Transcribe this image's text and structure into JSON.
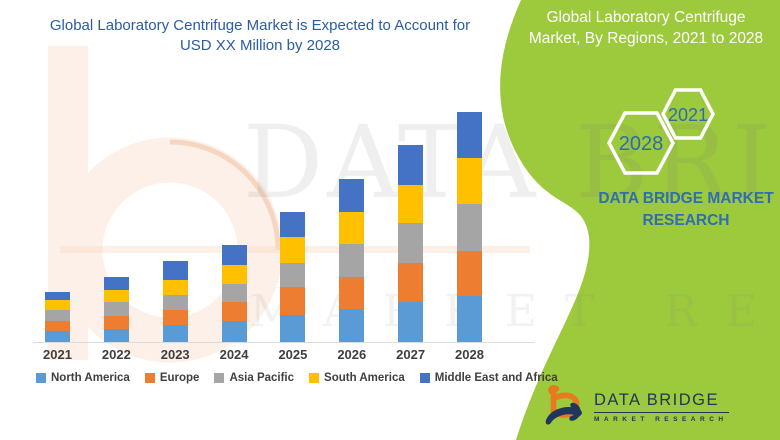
{
  "colors": {
    "green": "#9dc93d",
    "chart_title_blue": "#2a5ca8",
    "brand_blue": "#2e6fae",
    "hex_year_blue": "#2e6da8",
    "logo_navy": "#20365c",
    "logo_orange": "#e8791e",
    "axis_label_gray": "#3f3f3f",
    "watermark_peach": "#fdf0e8"
  },
  "left_panel": {
    "title_line1": "Global Laboratory Centrifuge Market is Expected to Account for",
    "title_line2": "USD XX Million by 2028"
  },
  "right_panel": {
    "title_line1": "Global Laboratory Centrifuge",
    "title_line2": "Market, By Regions, 2021 to 2028",
    "hexagons": [
      {
        "label": "2028"
      },
      {
        "label": "2021"
      }
    ],
    "brand_line1": "DATA BRIDGE MARKET",
    "brand_line2": "RESEARCH"
  },
  "watermark": {
    "line1": "DATA BRIDGE",
    "line2": "MARKET RESEARCH"
  },
  "logo": {
    "line1": "DATA BRIDGE",
    "line2": "MARKET RESEARCH"
  },
  "chart_data": {
    "type": "bar",
    "stacked": true,
    "title": "Global Laboratory Centrifuge Market is Expected to Account for USD XX Million by 2028",
    "categories": [
      "2021",
      "2022",
      "2023",
      "2024",
      "2025",
      "2026",
      "2027",
      "2028"
    ],
    "series": [
      {
        "name": "North America",
        "color": "#5B9BD5",
        "values": [
          11,
          13,
          17,
          21,
          27,
          33,
          40,
          46
        ]
      },
      {
        "name": "Europe",
        "color": "#ED7D31",
        "values": [
          10,
          13,
          15,
          19,
          28,
          32,
          39,
          45
        ]
      },
      {
        "name": "Asia Pacific",
        "color": "#A5A5A5",
        "values": [
          11,
          14,
          15,
          18,
          24,
          33,
          40,
          47
        ]
      },
      {
        "name": "South America",
        "color": "#FFC000",
        "values": [
          10,
          12,
          15,
          19,
          26,
          32,
          38,
          46
        ]
      },
      {
        "name": "Middle East and Africa",
        "color": "#4472C4",
        "values": [
          8,
          13,
          19,
          20,
          25,
          33,
          40,
          46
        ]
      }
    ],
    "xlabel": "",
    "ylabel": "",
    "ylim": [
      0,
      250
    ],
    "value_axis_shown": false,
    "grid": false,
    "legend_position": "bottom"
  }
}
